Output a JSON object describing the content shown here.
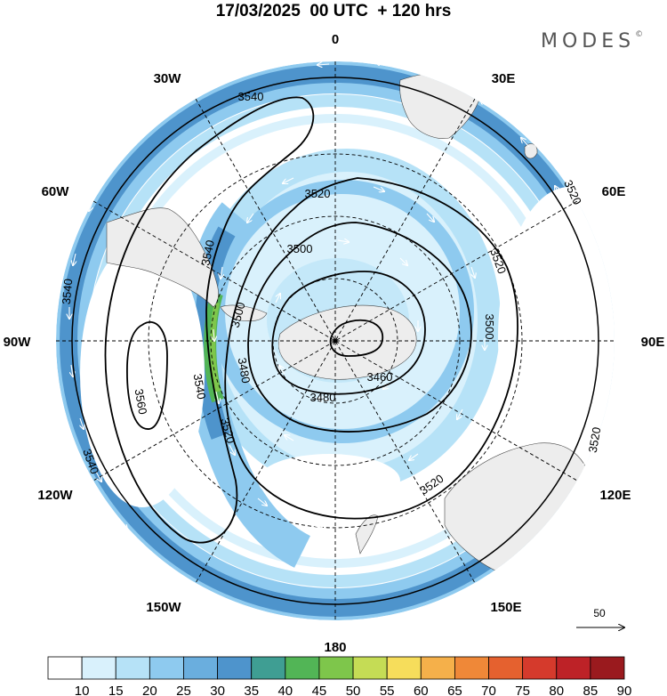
{
  "title": "17/03/2025  00 UTC  + 120 hrs",
  "brand": "MODES",
  "brand_mark": "©",
  "projection": "polar stereographic, south pole centred",
  "longitude_labels": {
    "top": "0",
    "top_right": "30E",
    "upper_right": "60E",
    "right": "90E",
    "lower_right": "120E",
    "bottom_right": "150E",
    "bottom": "180",
    "bottom_left": "150W",
    "lower_left": "120W",
    "left": "90W",
    "upper_left": "60W",
    "top_left": "30W"
  },
  "contour_labels": [
    "3540",
    "3520",
    "3500",
    "3540",
    "3500",
    "3480",
    "3460",
    "3480",
    "3560",
    "3540",
    "3520",
    "3520",
    "3500",
    "3520",
    "3520",
    "3520",
    "3540",
    "3540"
  ],
  "wind_reference": {
    "label": "50"
  },
  "colorbar": {
    "levels": [
      "10",
      "15",
      "20",
      "25",
      "30",
      "35",
      "40",
      "45",
      "50",
      "55",
      "60",
      "65",
      "70",
      "75",
      "80",
      "85",
      "90"
    ],
    "colors": [
      "#ffffff",
      "#d9f1fc",
      "#b6e2f7",
      "#8ecaef",
      "#6aaede",
      "#4e94cc",
      "#3f9e93",
      "#52b556",
      "#7ec64b",
      "#c5dc55",
      "#f6dd5b",
      "#f5b04a",
      "#ef8838",
      "#e5612f",
      "#d53a2c",
      "#bd2227",
      "#9a1a1e"
    ]
  }
}
